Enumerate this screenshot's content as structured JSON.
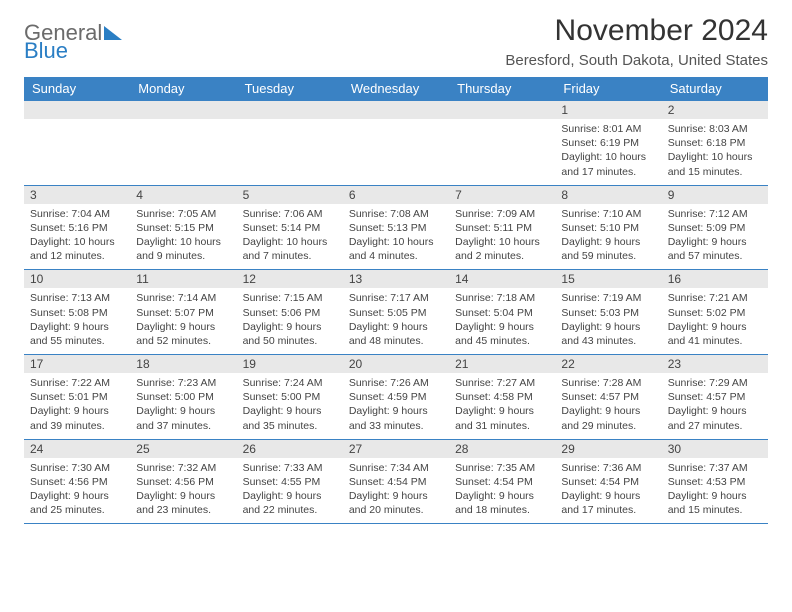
{
  "colors": {
    "accent": "#3a82c4",
    "header_bg": "#3a82c4",
    "daynum_bg": "#e8e8e8",
    "text": "#444444",
    "page_bg": "#ffffff",
    "logo_gray": "#6b6b6b",
    "logo_blue": "#2a7ec4"
  },
  "logo": {
    "word1": "General",
    "word2": "Blue"
  },
  "title": "November 2024",
  "location": "Beresford, South Dakota, United States",
  "weekdays": [
    "Sunday",
    "Monday",
    "Tuesday",
    "Wednesday",
    "Thursday",
    "Friday",
    "Saturday"
  ],
  "weeks": [
    {
      "nums": [
        "",
        "",
        "",
        "",
        "",
        "1",
        "2"
      ],
      "cells": [
        {
          "sunrise": "",
          "sunset": "",
          "daylight": ""
        },
        {
          "sunrise": "",
          "sunset": "",
          "daylight": ""
        },
        {
          "sunrise": "",
          "sunset": "",
          "daylight": ""
        },
        {
          "sunrise": "",
          "sunset": "",
          "daylight": ""
        },
        {
          "sunrise": "",
          "sunset": "",
          "daylight": ""
        },
        {
          "sunrise": "Sunrise: 8:01 AM",
          "sunset": "Sunset: 6:19 PM",
          "daylight": "Daylight: 10 hours and 17 minutes."
        },
        {
          "sunrise": "Sunrise: 8:03 AM",
          "sunset": "Sunset: 6:18 PM",
          "daylight": "Daylight: 10 hours and 15 minutes."
        }
      ]
    },
    {
      "nums": [
        "3",
        "4",
        "5",
        "6",
        "7",
        "8",
        "9"
      ],
      "cells": [
        {
          "sunrise": "Sunrise: 7:04 AM",
          "sunset": "Sunset: 5:16 PM",
          "daylight": "Daylight: 10 hours and 12 minutes."
        },
        {
          "sunrise": "Sunrise: 7:05 AM",
          "sunset": "Sunset: 5:15 PM",
          "daylight": "Daylight: 10 hours and 9 minutes."
        },
        {
          "sunrise": "Sunrise: 7:06 AM",
          "sunset": "Sunset: 5:14 PM",
          "daylight": "Daylight: 10 hours and 7 minutes."
        },
        {
          "sunrise": "Sunrise: 7:08 AM",
          "sunset": "Sunset: 5:13 PM",
          "daylight": "Daylight: 10 hours and 4 minutes."
        },
        {
          "sunrise": "Sunrise: 7:09 AM",
          "sunset": "Sunset: 5:11 PM",
          "daylight": "Daylight: 10 hours and 2 minutes."
        },
        {
          "sunrise": "Sunrise: 7:10 AM",
          "sunset": "Sunset: 5:10 PM",
          "daylight": "Daylight: 9 hours and 59 minutes."
        },
        {
          "sunrise": "Sunrise: 7:12 AM",
          "sunset": "Sunset: 5:09 PM",
          "daylight": "Daylight: 9 hours and 57 minutes."
        }
      ]
    },
    {
      "nums": [
        "10",
        "11",
        "12",
        "13",
        "14",
        "15",
        "16"
      ],
      "cells": [
        {
          "sunrise": "Sunrise: 7:13 AM",
          "sunset": "Sunset: 5:08 PM",
          "daylight": "Daylight: 9 hours and 55 minutes."
        },
        {
          "sunrise": "Sunrise: 7:14 AM",
          "sunset": "Sunset: 5:07 PM",
          "daylight": "Daylight: 9 hours and 52 minutes."
        },
        {
          "sunrise": "Sunrise: 7:15 AM",
          "sunset": "Sunset: 5:06 PM",
          "daylight": "Daylight: 9 hours and 50 minutes."
        },
        {
          "sunrise": "Sunrise: 7:17 AM",
          "sunset": "Sunset: 5:05 PM",
          "daylight": "Daylight: 9 hours and 48 minutes."
        },
        {
          "sunrise": "Sunrise: 7:18 AM",
          "sunset": "Sunset: 5:04 PM",
          "daylight": "Daylight: 9 hours and 45 minutes."
        },
        {
          "sunrise": "Sunrise: 7:19 AM",
          "sunset": "Sunset: 5:03 PM",
          "daylight": "Daylight: 9 hours and 43 minutes."
        },
        {
          "sunrise": "Sunrise: 7:21 AM",
          "sunset": "Sunset: 5:02 PM",
          "daylight": "Daylight: 9 hours and 41 minutes."
        }
      ]
    },
    {
      "nums": [
        "17",
        "18",
        "19",
        "20",
        "21",
        "22",
        "23"
      ],
      "cells": [
        {
          "sunrise": "Sunrise: 7:22 AM",
          "sunset": "Sunset: 5:01 PM",
          "daylight": "Daylight: 9 hours and 39 minutes."
        },
        {
          "sunrise": "Sunrise: 7:23 AM",
          "sunset": "Sunset: 5:00 PM",
          "daylight": "Daylight: 9 hours and 37 minutes."
        },
        {
          "sunrise": "Sunrise: 7:24 AM",
          "sunset": "Sunset: 5:00 PM",
          "daylight": "Daylight: 9 hours and 35 minutes."
        },
        {
          "sunrise": "Sunrise: 7:26 AM",
          "sunset": "Sunset: 4:59 PM",
          "daylight": "Daylight: 9 hours and 33 minutes."
        },
        {
          "sunrise": "Sunrise: 7:27 AM",
          "sunset": "Sunset: 4:58 PM",
          "daylight": "Daylight: 9 hours and 31 minutes."
        },
        {
          "sunrise": "Sunrise: 7:28 AM",
          "sunset": "Sunset: 4:57 PM",
          "daylight": "Daylight: 9 hours and 29 minutes."
        },
        {
          "sunrise": "Sunrise: 7:29 AM",
          "sunset": "Sunset: 4:57 PM",
          "daylight": "Daylight: 9 hours and 27 minutes."
        }
      ]
    },
    {
      "nums": [
        "24",
        "25",
        "26",
        "27",
        "28",
        "29",
        "30"
      ],
      "cells": [
        {
          "sunrise": "Sunrise: 7:30 AM",
          "sunset": "Sunset: 4:56 PM",
          "daylight": "Daylight: 9 hours and 25 minutes."
        },
        {
          "sunrise": "Sunrise: 7:32 AM",
          "sunset": "Sunset: 4:56 PM",
          "daylight": "Daylight: 9 hours and 23 minutes."
        },
        {
          "sunrise": "Sunrise: 7:33 AM",
          "sunset": "Sunset: 4:55 PM",
          "daylight": "Daylight: 9 hours and 22 minutes."
        },
        {
          "sunrise": "Sunrise: 7:34 AM",
          "sunset": "Sunset: 4:54 PM",
          "daylight": "Daylight: 9 hours and 20 minutes."
        },
        {
          "sunrise": "Sunrise: 7:35 AM",
          "sunset": "Sunset: 4:54 PM",
          "daylight": "Daylight: 9 hours and 18 minutes."
        },
        {
          "sunrise": "Sunrise: 7:36 AM",
          "sunset": "Sunset: 4:54 PM",
          "daylight": "Daylight: 9 hours and 17 minutes."
        },
        {
          "sunrise": "Sunrise: 7:37 AM",
          "sunset": "Sunset: 4:53 PM",
          "daylight": "Daylight: 9 hours and 15 minutes."
        }
      ]
    }
  ]
}
